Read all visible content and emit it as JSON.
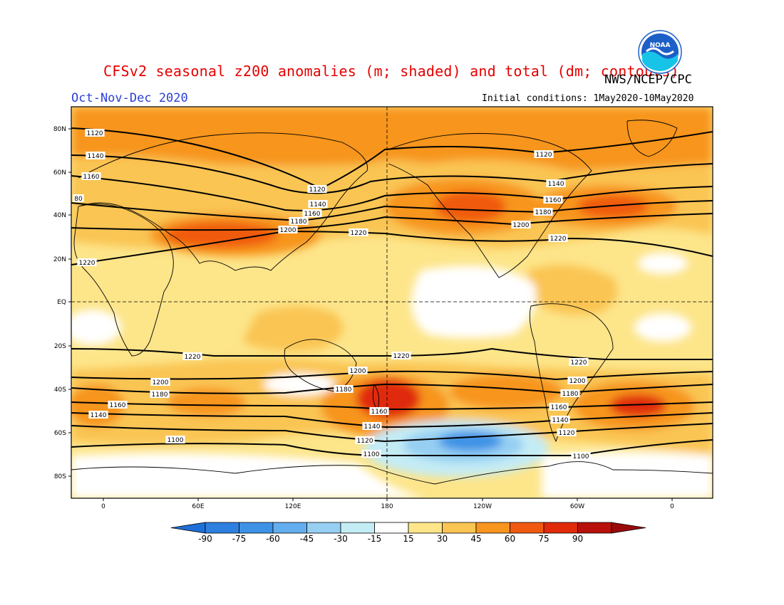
{
  "title": "CFSv2 seasonal z200 anomalies (m; shaded) and total (dm; contours)",
  "agency": "NWS/NCEP/CPC",
  "logo_text": "NOAA",
  "season": "Oct-Nov-Dec 2020",
  "initial_conditions": "Initial conditions: 1May2020-10May2020",
  "lat_labels": [
    "80N",
    "60N",
    "40N",
    "20N",
    "EQ",
    "20S",
    "40S",
    "60S",
    "80S"
  ],
  "lon_labels": [
    "0",
    "60E",
    "120E",
    "180",
    "120W",
    "60W",
    "0"
  ],
  "colorbar": {
    "levels": [
      "-90",
      "-75",
      "-60",
      "-45",
      "-30",
      "-15",
      "15",
      "30",
      "45",
      "60",
      "75",
      "90"
    ],
    "colors": [
      "#1e6fd8",
      "#2d7fe0",
      "#3e92e6",
      "#63aeee",
      "#96cff2",
      "#c4ecf5",
      "#ffffff",
      "#fde58a",
      "#fac552",
      "#f7951f",
      "#f05a10",
      "#e02a0a",
      "#b8100a",
      "#9a0a0a"
    ]
  },
  "contours": {
    "nh_labels": [
      "1120",
      "1140",
      "1160",
      "80",
      "1120",
      "1140",
      "1160",
      "1180",
      "1200",
      "1220",
      "1120",
      "1140",
      "1160",
      "1180",
      "1200",
      "1220",
      "1220"
    ],
    "sh_labels": [
      "1220",
      "1220",
      "1220",
      "1200",
      "1200",
      "1200",
      "1180",
      "1180",
      "1180",
      "1160",
      "1160",
      "1160",
      "1140",
      "1140",
      "1140",
      "1120",
      "1120",
      "1100",
      "1100",
      "1100"
    ]
  }
}
